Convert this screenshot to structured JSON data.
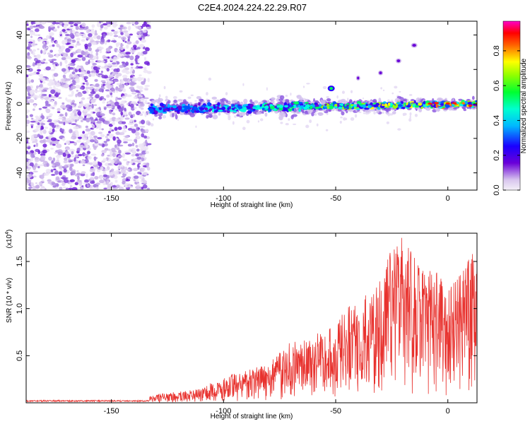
{
  "title": "C2E4.2024.224.22.29.R07",
  "colors": {
    "snr_line": "#e8322e",
    "frame": "#000000"
  },
  "chart_data": [
    {
      "type": "heatmap",
      "name": "spectrogram",
      "xlabel": "Height of straight line (km)",
      "ylabel": "Frequency (Hz)",
      "xlim": [
        -188,
        13
      ],
      "ylim": [
        -50,
        48
      ],
      "x_ticks": [
        -150,
        -100,
        -50,
        0
      ],
      "y_ticks": [
        -40,
        -20,
        0,
        20,
        40
      ],
      "x_tick_labels": [
        "-150",
        "-100",
        "-50",
        "0"
      ],
      "y_tick_labels": [
        "-40",
        "-20",
        "0",
        "20",
        "40"
      ],
      "colorbar": {
        "label": "Normalized spectral amplitude",
        "range": [
          0,
          0.97
        ],
        "ticks": [
          0.0,
          0.2,
          0.4,
          0.6,
          0.8
        ],
        "tick_labels": [
          "0.0",
          "0.2",
          "0.4",
          "0.6",
          "0.8"
        ],
        "colormap": "rainbow (purple-blue-cyan-green-yellow-red-magenta)"
      },
      "features": {
        "noise_region_x": [
          -188,
          -133
        ],
        "band_center_hz_start": -3,
        "band_center_hz_end": 0,
        "band_x_range": [
          -133,
          13
        ],
        "weak_streak_points": [
          [
            -40,
            15
          ],
          [
            -30,
            18
          ],
          [
            -22,
            25
          ],
          [
            -15,
            34
          ]
        ]
      }
    },
    {
      "type": "line",
      "name": "snr",
      "xlabel": "Height of straight line (km)",
      "ylabel": "SNR (10 * v/v)",
      "ylabel_scale": "(x10",
      "ylabel_scale_exp": "4",
      "xlim": [
        -188,
        13
      ],
      "ylim": [
        0,
        18000
      ],
      "x_ticks": [
        -150,
        -100,
        -50,
        0
      ],
      "x_tick_labels": [
        "-150",
        "-100",
        "-50",
        "0"
      ],
      "y_ticks": [
        5000,
        10000,
        15000
      ],
      "y_tick_labels": [
        "0.5",
        "1.0",
        "1.5"
      ],
      "series": [
        {
          "envelope_x": [
            -188,
            -140,
            -130,
            -120,
            -110,
            -100,
            -90,
            -80,
            -70,
            -60,
            -50,
            -40,
            -30,
            -25,
            -20,
            -15,
            -10,
            -5,
            0,
            5,
            10,
            13
          ],
          "envelope_y": [
            100,
            200,
            900,
            1200,
            1500,
            2800,
            3500,
            4200,
            6500,
            7000,
            9000,
            11500,
            13500,
            16500,
            17800,
            15500,
            14500,
            14000,
            12000,
            13800,
            15500,
            16500
          ]
        }
      ]
    }
  ]
}
